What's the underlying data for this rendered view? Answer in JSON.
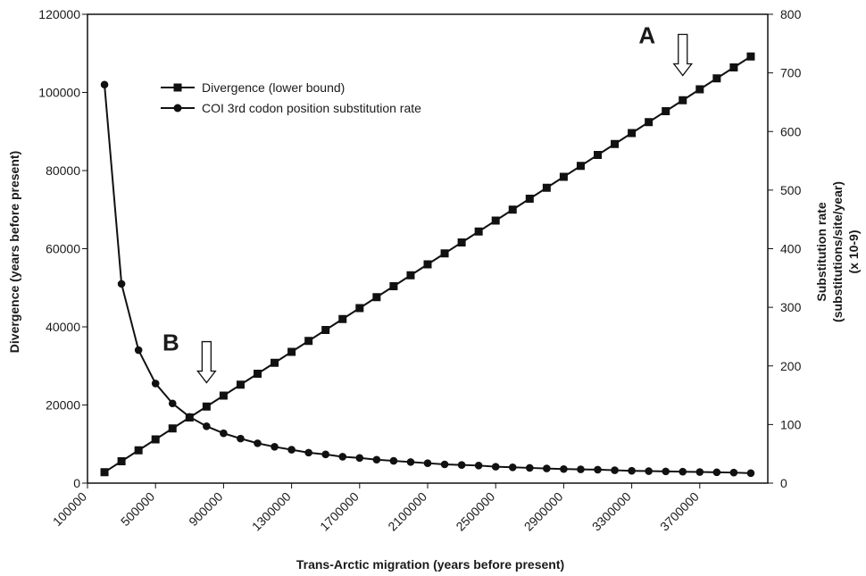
{
  "chart_data": {
    "type": "line",
    "xlabel": "Trans-Arctic migration (years before present)",
    "ylabel_left": "Divergence (years before present)",
    "ylabel_right": [
      "Substitution rate",
      "(substitutions/site/year)",
      "(x 10-9)"
    ],
    "x_tick_labels": [
      "100000",
      "500000",
      "900000",
      "1300000",
      "1700000",
      "2100000",
      "2500000",
      "2900000",
      "3300000",
      "3700000"
    ],
    "x_ticks": [
      100000,
      500000,
      900000,
      1300000,
      1700000,
      2100000,
      2500000,
      2900000,
      3300000,
      3700000
    ],
    "xlim": [
      100000,
      4100000
    ],
    "ylim_left": [
      0,
      120000
    ],
    "ylim_right": [
      0,
      800
    ],
    "y_left_ticks": [
      0,
      20000,
      40000,
      60000,
      80000,
      100000,
      120000
    ],
    "y_right_ticks": [
      0,
      100,
      200,
      300,
      400,
      500,
      600,
      700,
      800
    ],
    "y_left_tick_labels": [
      "0",
      "20000",
      "40000",
      "60000",
      "80000",
      "100000",
      "120000"
    ],
    "y_right_tick_labels": [
      "0",
      "100",
      "200",
      "300",
      "400",
      "500",
      "600",
      "700",
      "800"
    ],
    "x": [
      200000,
      300000,
      400000,
      500000,
      600000,
      700000,
      800000,
      900000,
      1000000,
      1100000,
      1200000,
      1300000,
      1400000,
      1500000,
      1600000,
      1700000,
      1800000,
      1900000,
      2000000,
      2100000,
      2200000,
      2300000,
      2400000,
      2500000,
      2600000,
      2700000,
      2800000,
      2900000,
      3000000,
      3100000,
      3200000,
      3300000,
      3400000,
      3500000,
      3600000,
      3700000,
      3800000,
      3900000,
      4000000
    ],
    "series": [
      {
        "name": "Divergence (lower bound)",
        "axis": "left",
        "marker": "square",
        "values": [
          2800,
          5600,
          8400,
          11200,
          14000,
          16800,
          19600,
          22400,
          25200,
          28000,
          30800,
          33600,
          36400,
          39200,
          42000,
          44800,
          47600,
          50400,
          53200,
          56000,
          58800,
          61600,
          64400,
          67200,
          70000,
          72800,
          75600,
          78400,
          81200,
          84000,
          86800,
          89600,
          92400,
          95200,
          98000,
          100800,
          103600,
          106400,
          109200
        ]
      },
      {
        "name": "COI 3rd codon position substitution rate",
        "axis": "right",
        "marker": "circle",
        "values": [
          680,
          340,
          227,
          170,
          136,
          113,
          97,
          85,
          76,
          68,
          62,
          57,
          52,
          49,
          45,
          43,
          40,
          38,
          36,
          34,
          32,
          31,
          30,
          28,
          27,
          26,
          25,
          24,
          23.5,
          23,
          22,
          21,
          20.5,
          20,
          19.5,
          19,
          18.5,
          18,
          17
        ]
      }
    ],
    "annotations": [
      {
        "label": "A",
        "x": 3600000,
        "y_right": 720
      },
      {
        "label": "B",
        "x": 800000,
        "y_right": 150
      }
    ],
    "legend": "upper-left-inside",
    "grid": false
  }
}
